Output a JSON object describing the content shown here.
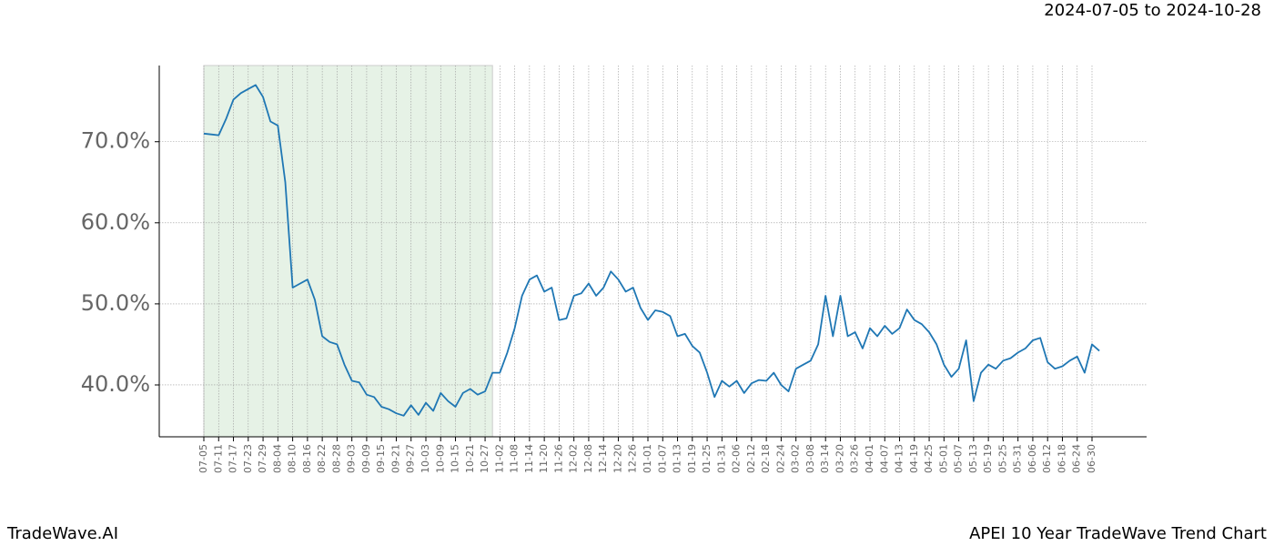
{
  "chart_data": {
    "type": "line",
    "subtitle": "2024-07-05 to 2024-10-28",
    "brand": "TradeWave.AI",
    "title": "APEI 10 Year TradeWave Trend Chart",
    "categories": [
      "07-05",
      null,
      "07-11",
      null,
      "07-17",
      null,
      "07-23",
      null,
      "07-29",
      null,
      "08-04",
      null,
      "08-10",
      null,
      "08-16",
      null,
      "08-22",
      null,
      "08-28",
      null,
      "09-03",
      null,
      "09-09",
      null,
      "09-15",
      null,
      "09-21",
      null,
      "09-27",
      null,
      "10-03",
      null,
      "10-09",
      null,
      "10-15",
      null,
      "10-21",
      null,
      "10-27",
      null,
      "11-02",
      null,
      "11-08",
      null,
      "11-14",
      null,
      "11-20",
      null,
      "11-26",
      null,
      "12-02",
      null,
      "12-08",
      null,
      "12-14",
      null,
      "12-20",
      null,
      "12-26",
      null,
      "01-01",
      null,
      "01-07",
      null,
      "01-13",
      null,
      "01-19",
      null,
      "01-25",
      null,
      "01-31",
      null,
      "02-06",
      null,
      "02-12",
      null,
      "02-18",
      null,
      "02-24",
      null,
      "03-02",
      null,
      "03-08",
      null,
      "03-14",
      null,
      "03-20",
      null,
      "03-26",
      null,
      "04-01",
      null,
      "04-07",
      null,
      "04-13",
      null,
      "04-19",
      null,
      "04-25",
      null,
      "05-01",
      null,
      "05-07",
      null,
      "05-13",
      null,
      "05-19",
      null,
      "05-25",
      null,
      "05-31",
      null,
      "06-06",
      null,
      "06-12",
      null,
      "06-18",
      null,
      "06-24",
      null,
      "06-30",
      null
    ],
    "series": [
      {
        "name": "APEI",
        "color": "#1f77b4",
        "values": [
          71.0,
          70.9,
          70.8,
          72.8,
          75.2,
          76.0,
          76.5,
          77.0,
          75.5,
          72.5,
          72.0,
          65,
          52,
          52.5,
          53,
          50.5,
          46,
          45.3,
          45,
          42.5,
          40.5,
          40.3,
          38.8,
          38.5,
          37.3,
          37,
          36.5,
          36.2,
          37.5,
          36.3,
          37.8,
          36.8,
          39,
          38,
          37.3,
          39,
          39.5,
          38.8,
          39.2,
          41.5,
          41.5,
          44,
          47,
          51,
          53,
          53.5,
          51.5,
          52,
          48,
          48.2,
          51,
          51.3,
          52.5,
          51,
          52,
          54,
          53,
          51.5,
          52,
          49.5,
          48,
          49.2,
          49,
          48.5,
          46,
          46.3,
          44.8,
          44,
          41.5,
          38.5,
          40.5,
          39.8,
          40.5,
          39,
          40.2,
          40.6,
          40.5,
          41.5,
          40,
          39.2,
          42,
          42.5,
          43,
          45,
          51,
          46,
          51,
          46,
          46.5,
          44.5,
          47,
          46,
          47.3,
          46.3,
          47,
          49.3,
          48,
          47.5,
          46.5,
          45,
          42.5,
          41,
          42,
          45.5,
          38,
          41.5,
          42.5,
          42,
          43,
          43.3,
          44,
          44.5,
          45.5,
          45.8,
          42.8,
          42,
          42.3,
          43,
          43.5,
          41.5,
          45,
          44.2
        ]
      }
    ],
    "ylim": [
      33.6,
      79.4
    ],
    "yticks": [
      {
        "value": 40,
        "label": "40.0%"
      },
      {
        "value": 50,
        "label": "50.0%"
      },
      {
        "value": 60,
        "label": "60.0%"
      },
      {
        "value": 70,
        "label": "70.0%"
      }
    ],
    "shaded_span": [
      0,
      39
    ],
    "shade_color": "#e6f2e6",
    "grid": true
  }
}
